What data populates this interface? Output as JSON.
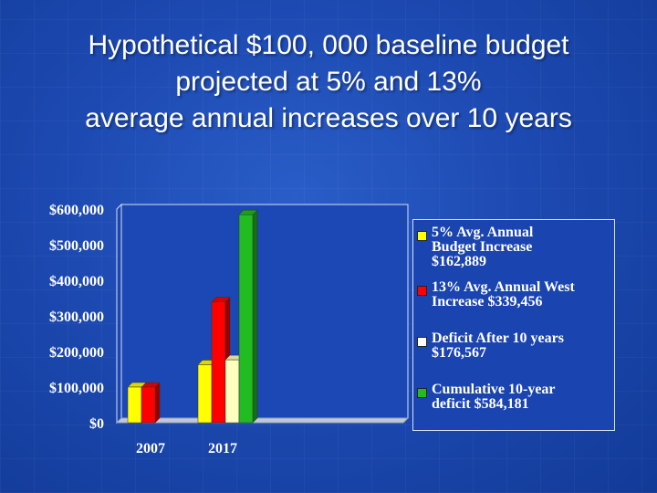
{
  "slide": {
    "title_lines": [
      "Hypothetical $100, 000 baseline budget",
      "projected at 5% and 13%",
      "average annual increases over 10 years"
    ]
  },
  "chart_data": {
    "type": "bar",
    "categories": [
      "2007",
      "2017"
    ],
    "series": [
      {
        "name": "5% Avg. Annual Budget Increase $162,889",
        "color": "#ffff00",
        "values": [
          100000,
          162889
        ]
      },
      {
        "name": "13% Avg. Annual West Increase $339,456",
        "color": "#ff0000",
        "values": [
          100000,
          339456
        ]
      },
      {
        "name": "Deficit After 10 years $176,567",
        "color": "#ffffc0",
        "values": [
          null,
          176567
        ]
      },
      {
        "name": "Cumulative 10-year deficit $584,181",
        "color": "#22bb22",
        "values": [
          null,
          584181
        ]
      }
    ],
    "ylim": [
      0,
      600000
    ],
    "yticks": [
      0,
      100000,
      200000,
      300000,
      400000,
      500000,
      600000
    ],
    "ytick_labels": [
      "$0",
      "$100,000",
      "$200,000",
      "$300,000",
      "$400,000",
      "$500,000",
      "$600,000"
    ],
    "grid": false,
    "legend_position": "right",
    "legend": [
      {
        "lines": [
          "5% Avg. Annual",
          "Budget Increase",
          "$162,889"
        ],
        "color": "#ffff00"
      },
      {
        "lines": [
          "13% Avg. Annual West",
          "Increase $339,456"
        ],
        "color": "#ff0000"
      },
      {
        "lines": [
          "Deficit After 10 years",
          "$176,567"
        ],
        "color": "#ffffff"
      },
      {
        "lines": [
          "Cumulative 10-year",
          "deficit $584,181"
        ],
        "color": "#22bb22"
      }
    ]
  }
}
